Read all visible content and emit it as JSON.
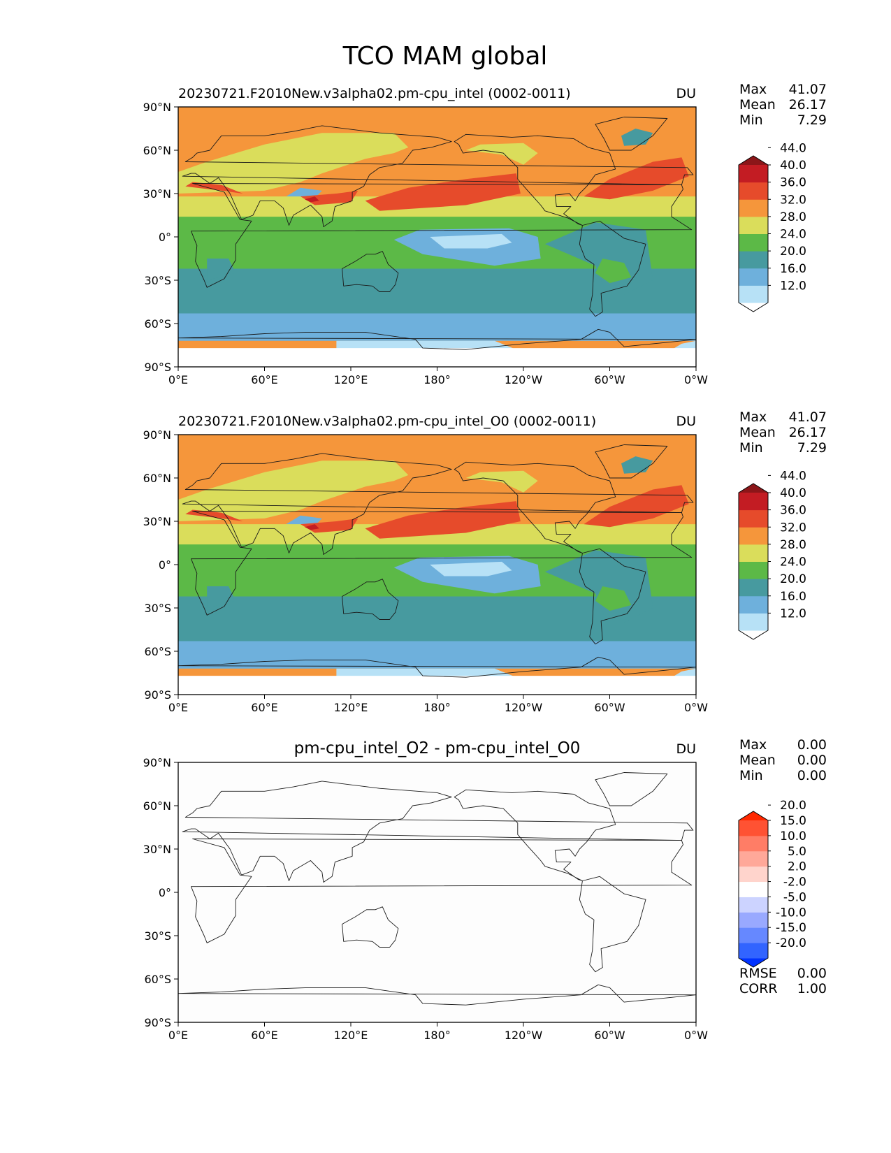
{
  "figure": {
    "title": "TCO MAM global"
  },
  "panels": [
    {
      "id": "test",
      "title_left": "20230721.F2010New.v3alpha02.pm-cpu_intel (0002-0011)",
      "title_center": "",
      "units": "DU",
      "stats": [
        {
          "label": "Max",
          "value": "41.07"
        },
        {
          "label": "Mean",
          "value": "26.17"
        },
        {
          "label": "Min",
          "value": "7.29"
        }
      ],
      "extra_stats": [],
      "colorbar": {
        "colors": [
          "#ffffff",
          "#b7e1f6",
          "#6eb0dc",
          "#479a9f",
          "#5cb947",
          "#dadd5b",
          "#f5963b",
          "#e64b2b",
          "#c31c23",
          "#8c1619"
        ],
        "labels": [
          "12.0",
          "16.0",
          "20.0",
          "24.0",
          "28.0",
          "32.0",
          "36.0",
          "40.0",
          "44.0"
        ]
      }
    },
    {
      "id": "reference",
      "title_left": "20230721.F2010New.v3alpha02.pm-cpu_intel_O0 (0002-0011)",
      "title_center": "",
      "units": "DU",
      "stats": [
        {
          "label": "Max",
          "value": "41.07"
        },
        {
          "label": "Mean",
          "value": "26.17"
        },
        {
          "label": "Min",
          "value": "7.29"
        }
      ],
      "extra_stats": [],
      "colorbar": {
        "colors": [
          "#ffffff",
          "#b7e1f6",
          "#6eb0dc",
          "#479a9f",
          "#5cb947",
          "#dadd5b",
          "#f5963b",
          "#e64b2b",
          "#c31c23",
          "#8c1619"
        ],
        "labels": [
          "12.0",
          "16.0",
          "20.0",
          "24.0",
          "28.0",
          "32.0",
          "36.0",
          "40.0",
          "44.0"
        ]
      }
    },
    {
      "id": "difference",
      "title_left": "",
      "title_center": "pm-cpu_intel_O2 - pm-cpu_intel_O0",
      "units": "DU",
      "stats": [
        {
          "label": "Max",
          "value": "0.00"
        },
        {
          "label": "Mean",
          "value": "0.00"
        },
        {
          "label": "Min",
          "value": "0.00"
        }
      ],
      "extra_stats": [
        {
          "label": "RMSE",
          "value": "0.00"
        },
        {
          "label": "CORR",
          "value": "1.00"
        }
      ],
      "colorbar": {
        "colors": [
          "#0032ff",
          "#3264ff",
          "#6688ff",
          "#99a9ff",
          "#ccd3ff",
          "#ffffff",
          "#ffd4cc",
          "#ffa899",
          "#ff7d66",
          "#ff5233",
          "#ff2800"
        ],
        "labels": [
          "-20.0",
          "-15.0",
          "-10.0",
          "-5.0",
          "-2.0",
          "2.0",
          "5.0",
          "10.0",
          "15.0",
          "20.0"
        ]
      }
    }
  ],
  "chart_data": [
    {
      "type": "heatmap",
      "title": "20230721.F2010New.v3alpha02.pm-cpu_intel (0002-0011)",
      "units": "DU",
      "x_ticks": [
        "0°E",
        "60°E",
        "120°E",
        "180°",
        "120°W",
        "60°W",
        "0°W"
      ],
      "y_ticks": [
        "90°N",
        "60°N",
        "30°N",
        "0°",
        "30°S",
        "60°S",
        "90°S"
      ],
      "xlim": [
        0,
        360
      ],
      "ylim": [
        -90,
        90
      ],
      "levels": [
        12,
        16,
        20,
        24,
        28,
        32,
        36,
        40,
        44
      ],
      "max": 41.07,
      "mean": 26.17,
      "min": 7.29
    },
    {
      "type": "heatmap",
      "title": "20230721.F2010New.v3alpha02.pm-cpu_intel_O0 (0002-0011)",
      "units": "DU",
      "x_ticks": [
        "0°E",
        "60°E",
        "120°E",
        "180°",
        "120°W",
        "60°W",
        "0°W"
      ],
      "y_ticks": [
        "90°N",
        "60°N",
        "30°N",
        "0°",
        "30°S",
        "60°S",
        "90°S"
      ],
      "xlim": [
        0,
        360
      ],
      "ylim": [
        -90,
        90
      ],
      "levels": [
        12,
        16,
        20,
        24,
        28,
        32,
        36,
        40,
        44
      ],
      "max": 41.07,
      "mean": 26.17,
      "min": 7.29
    },
    {
      "type": "heatmap",
      "title": "pm-cpu_intel_O2 - pm-cpu_intel_O0",
      "units": "DU",
      "x_ticks": [
        "0°E",
        "60°E",
        "120°E",
        "180°",
        "120°W",
        "60°W",
        "0°W"
      ],
      "y_ticks": [
        "90°N",
        "60°N",
        "30°N",
        "0°",
        "30°S",
        "60°S",
        "90°S"
      ],
      "xlim": [
        0,
        360
      ],
      "ylim": [
        -90,
        90
      ],
      "levels": [
        -20,
        -15,
        -10,
        -5,
        -2,
        2,
        5,
        10,
        15,
        20
      ],
      "max": 0.0,
      "mean": 0.0,
      "min": 0.0,
      "rmse": 0.0,
      "corr": 1.0
    }
  ]
}
